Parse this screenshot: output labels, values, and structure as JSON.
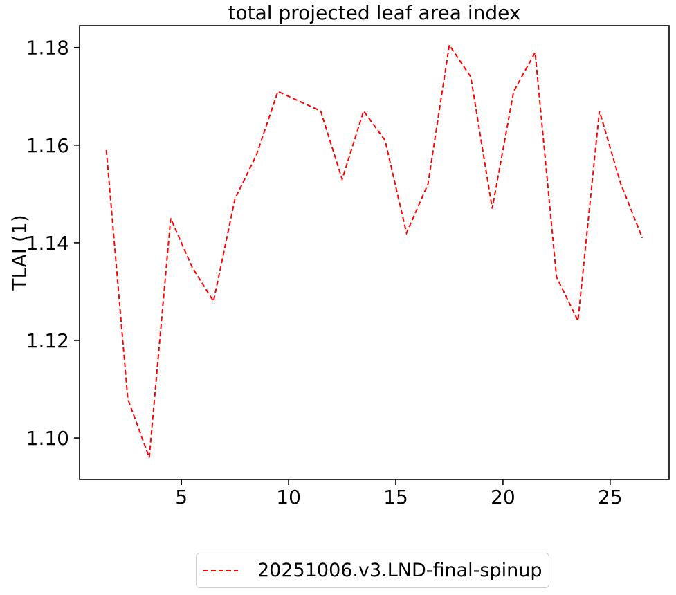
{
  "chart_data": {
    "type": "line",
    "title": "total projected leaf area index",
    "xlabel": "",
    "ylabel": "TLAI (1)",
    "grid": false,
    "legend_position": "below-center",
    "line_color": "#ff0000",
    "line_style": "dashed",
    "line_width": 2,
    "xlim": [
      0.25,
      27.75
    ],
    "ylim": [
      1.0915,
      1.1845
    ],
    "xticks": [
      {
        "value": 5,
        "label": "5"
      },
      {
        "value": 10,
        "label": "10"
      },
      {
        "value": 15,
        "label": "15"
      },
      {
        "value": 20,
        "label": "20"
      },
      {
        "value": 25,
        "label": "25"
      }
    ],
    "yticks": [
      {
        "value": 1.1,
        "label": "1.10"
      },
      {
        "value": 1.12,
        "label": "1.12"
      },
      {
        "value": 1.14,
        "label": "1.14"
      },
      {
        "value": 1.16,
        "label": "1.16"
      },
      {
        "value": 1.18,
        "label": "1.18"
      }
    ],
    "series": [
      {
        "name": "20251006.v3.LND-final-spinup",
        "x": [
          1.5,
          2.5,
          3.5,
          4.5,
          5.5,
          6.5,
          7.5,
          8.5,
          9.5,
          10.5,
          11.5,
          12.5,
          13.5,
          14.5,
          15.5,
          16.5,
          17.5,
          18.5,
          19.5,
          20.5,
          21.5,
          22.5,
          23.5,
          24.5,
          25.5,
          26.5
        ],
        "y": [
          1.159,
          1.108,
          1.096,
          1.145,
          1.135,
          1.128,
          1.149,
          1.158,
          1.171,
          1.169,
          1.167,
          1.153,
          1.167,
          1.161,
          1.142,
          1.152,
          1.1805,
          1.174,
          1.147,
          1.171,
          1.179,
          1.133,
          1.124,
          1.167,
          1.152,
          1.141
        ]
      }
    ]
  }
}
